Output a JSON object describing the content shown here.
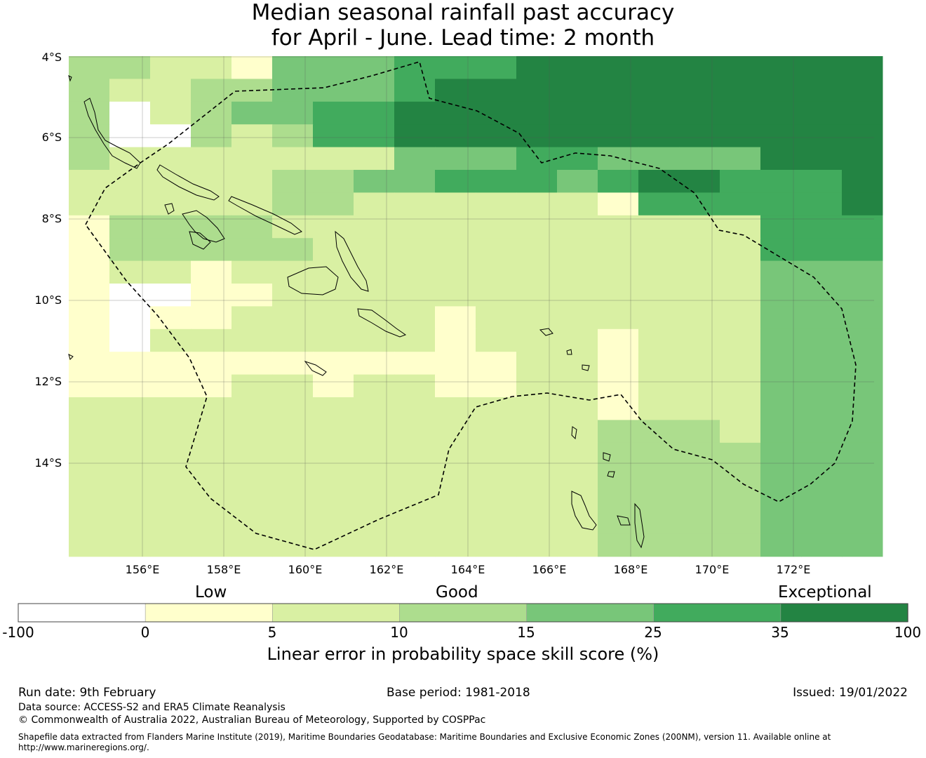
{
  "title": {
    "line1": "Median seasonal rainfall past accuracy",
    "line2": "for April - June. Lead time: 2 month"
  },
  "map": {
    "lat_ticks": [
      "4°S",
      "6°S",
      "8°S",
      "10°S",
      "12°S",
      "14°S"
    ],
    "lon_ticks": [
      "156°E",
      "158°E",
      "160°E",
      "162°E",
      "164°E",
      "166°E",
      "168°E",
      "170°E",
      "172°E"
    ],
    "lon_range": [
      154.2,
      174.0
    ],
    "lat_range": [
      -4.0,
      -16.3
    ],
    "grid_rows_top_down": [
      "33221444555666666666",
      "32233444566666666666",
      "30234455666666666666",
      "30032355666666666666",
      "32222222444554444666",
      "22222334455545665556",
      "22222332222221555556",
      "13333222222222222555",
      "13333322222222222555",
      "12212222222222222444",
      "10011222222222222444",
      "10112222212222222444",
      "10222222212221222444",
      "11111111111221222444",
      "11112212211221222444",
      "22222222222221222444",
      "22222222222223332444",
      "22222222222223333444",
      "22222222222223333444",
      "22222222222223333444",
      "22222222222223333444",
      "22222222222223333444"
    ],
    "colors": [
      "#ffffff",
      "#ffffcc",
      "#d9f0a3",
      "#addd8e",
      "#78c679",
      "#41ab5d",
      "#238443"
    ]
  },
  "colorbar": {
    "categories": [
      "Low",
      "Good",
      "Exceptional"
    ],
    "ticks": [
      "-100",
      "0",
      "5",
      "10",
      "15",
      "25",
      "35",
      "100"
    ],
    "label": "Linear error in probability space skill score (%)"
  },
  "footer": {
    "run_date": "Run date: 9th February",
    "base_period": "Base period: 1981-2018",
    "issued": "Issued: 19/01/2022",
    "data_source": "Data source: ACCESS-S2 and ERA5 Climate Reanalysis",
    "copyright": "© Commonwealth of Australia 2022, Australian Bureau of Meteorology, Supported by COSPPac",
    "shapefile_line1": "Shapefile data extracted from Flanders Marine Institute (2019), Maritime Boundaries Geodatabase: Maritime Boundaries and Exclusive Economic Zones (200NM), version 11. Available online at",
    "shapefile_line2": "http://www.marineregions.org/."
  }
}
